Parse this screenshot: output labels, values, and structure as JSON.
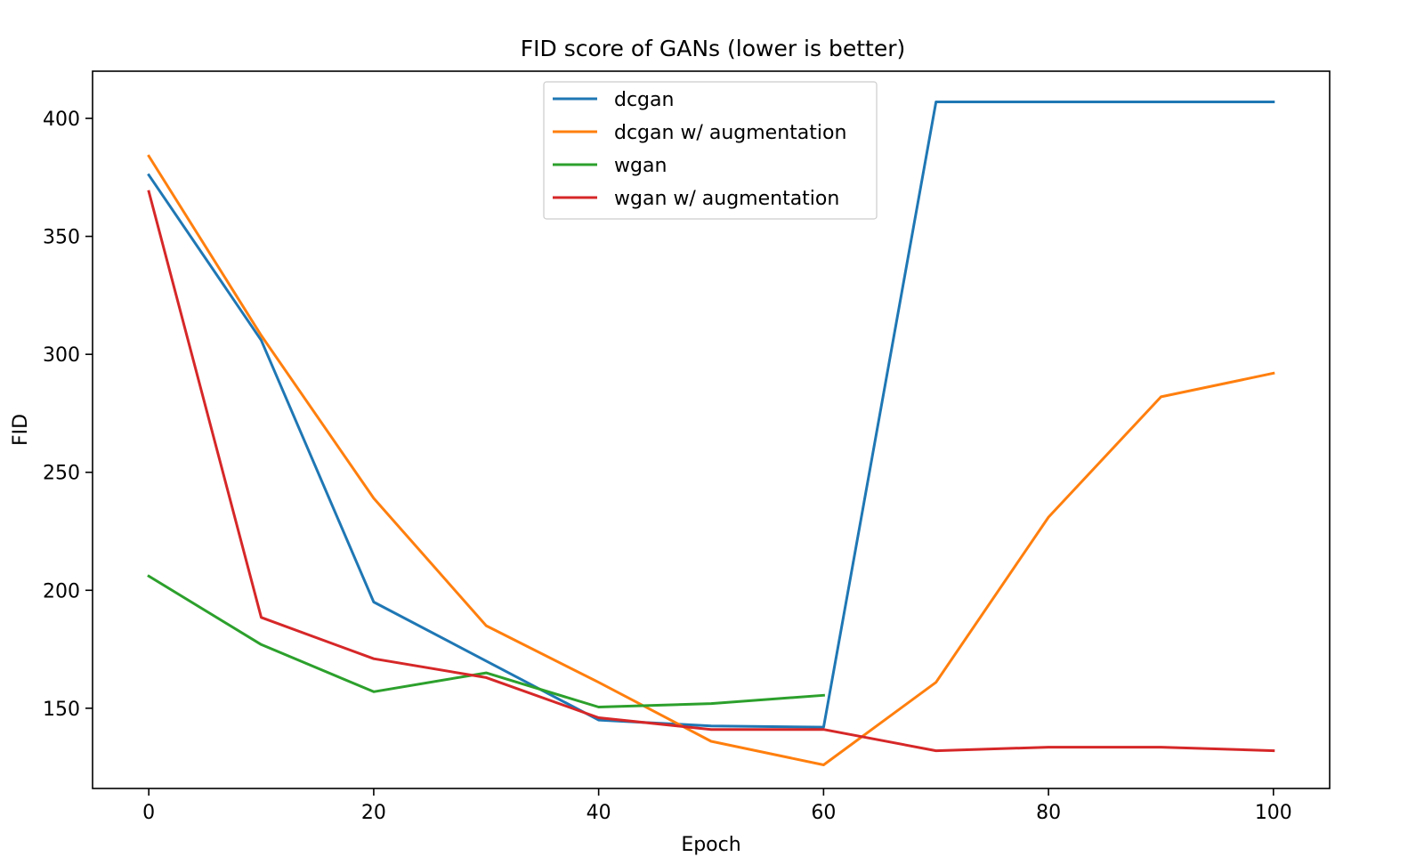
{
  "chart_data": {
    "type": "line",
    "title": "FID score of GANs (lower is better)",
    "xlabel": "Epoch",
    "ylabel": "FID",
    "xlim": [
      -5,
      105
    ],
    "ylim": [
      116,
      420
    ],
    "xticks": [
      0,
      20,
      40,
      60,
      80,
      100
    ],
    "yticks": [
      150,
      200,
      250,
      300,
      350,
      400
    ],
    "grid": false,
    "legend_position": "top-center",
    "series": [
      {
        "name": "dcgan",
        "color": "#1f77b4",
        "x": [
          0,
          10,
          20,
          30,
          40,
          50,
          60,
          70,
          80,
          90,
          100
        ],
        "y": [
          376,
          306,
          195,
          170,
          145,
          142.5,
          142,
          407,
          407,
          407,
          407
        ]
      },
      {
        "name": "dcgan w/ augmentation",
        "color": "#ff7f0e",
        "x": [
          0,
          10,
          20,
          30,
          40,
          50,
          60,
          70,
          80,
          90,
          100
        ],
        "y": [
          384,
          308,
          239,
          185,
          161,
          136,
          126,
          161,
          231,
          282,
          292
        ]
      },
      {
        "name": "wgan",
        "color": "#2ca02c",
        "x": [
          0,
          10,
          20,
          30,
          40,
          50,
          60
        ],
        "y": [
          206,
          177,
          157,
          165,
          150.5,
          152,
          155.5
        ]
      },
      {
        "name": "wgan w/ augmentation",
        "color": "#d62728",
        "x": [
          0,
          10,
          20,
          30,
          40,
          50,
          60,
          70,
          80,
          90,
          100
        ],
        "y": [
          369,
          188.5,
          171,
          163,
          146,
          141,
          141,
          132,
          133.5,
          133.5,
          132
        ]
      }
    ]
  }
}
